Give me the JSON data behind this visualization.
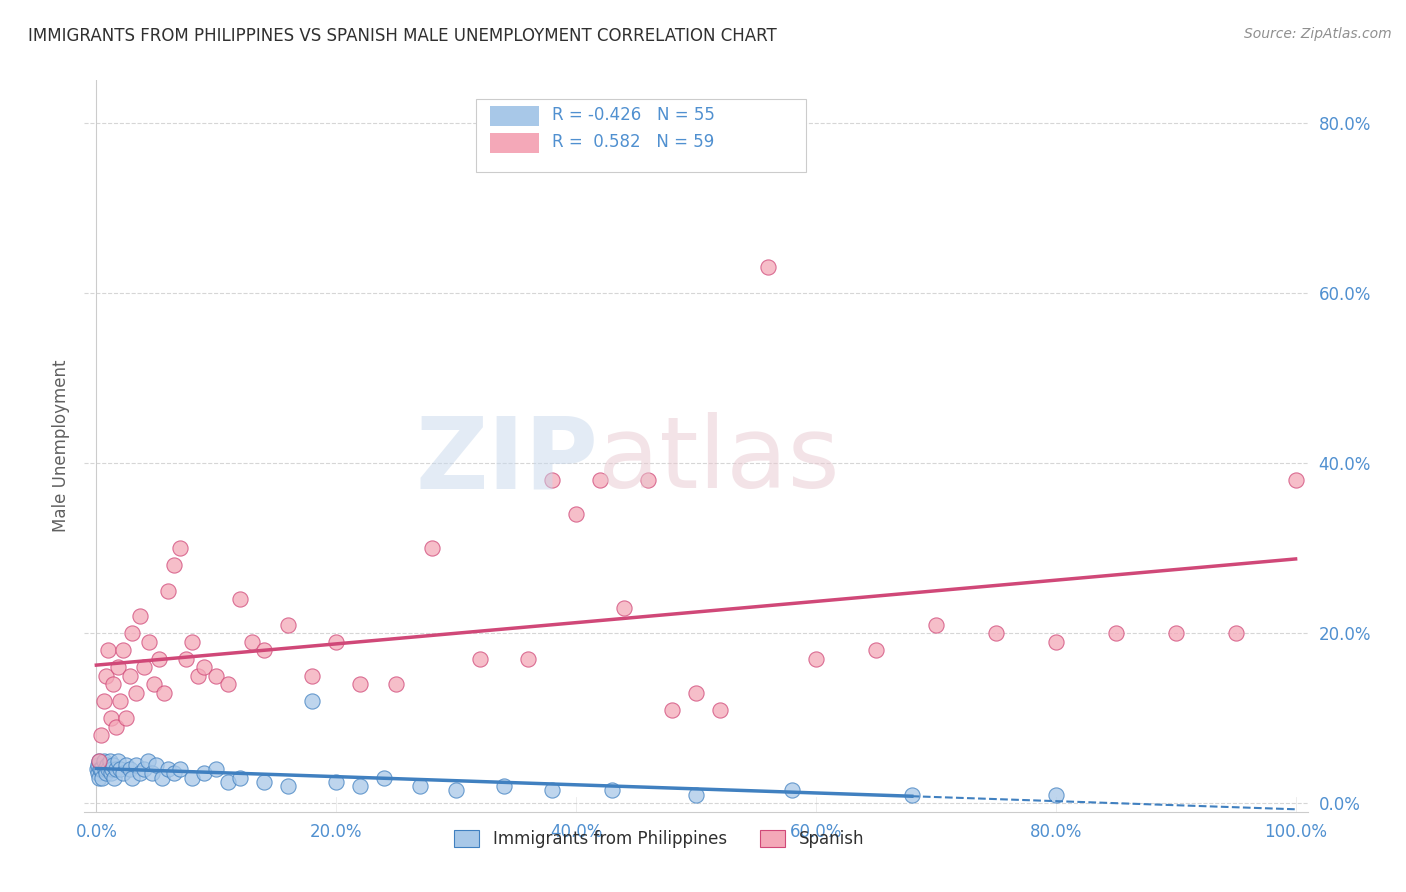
{
  "title": "IMMIGRANTS FROM PHILIPPINES VS SPANISH MALE UNEMPLOYMENT CORRELATION CHART",
  "source": "Source: ZipAtlas.com",
  "ylabel": "Male Unemployment",
  "legend_label1": "Immigrants from Philippines",
  "legend_label2": "Spanish",
  "R1": -0.426,
  "N1": 55,
  "R2": 0.582,
  "N2": 59,
  "color1": "#a8c8e8",
  "color2": "#f4a8b8",
  "line_color1": "#4080c0",
  "line_color2": "#d04878",
  "tick_color": "#5090d0",
  "grid_color": "#cccccc",
  "background_color": "#ffffff",
  "title_color": "#303030",
  "source_color": "#909090",
  "ylabel_color": "#606060",
  "xlim": [
    0.0,
    1.0
  ],
  "ylim": [
    0.0,
    0.85
  ],
  "xtick_vals": [
    0.0,
    0.2,
    0.4,
    0.6,
    0.8,
    1.0
  ],
  "ytick_vals": [
    0.0,
    0.2,
    0.4,
    0.6,
    0.8
  ],
  "philippines_x": [
    0.0005,
    0.001,
    0.0015,
    0.002,
    0.0025,
    0.003,
    0.004,
    0.005,
    0.006,
    0.007,
    0.008,
    0.009,
    0.01,
    0.011,
    0.012,
    0.013,
    0.014,
    0.015,
    0.016,
    0.018,
    0.02,
    0.022,
    0.025,
    0.028,
    0.03,
    0.033,
    0.036,
    0.04,
    0.043,
    0.046,
    0.05,
    0.055,
    0.06,
    0.065,
    0.07,
    0.08,
    0.09,
    0.1,
    0.11,
    0.12,
    0.14,
    0.16,
    0.18,
    0.2,
    0.22,
    0.24,
    0.27,
    0.3,
    0.34,
    0.38,
    0.43,
    0.5,
    0.58,
    0.68,
    0.8
  ],
  "philippines_y": [
    0.04,
    0.035,
    0.045,
    0.03,
    0.05,
    0.04,
    0.04,
    0.03,
    0.05,
    0.04,
    0.035,
    0.045,
    0.04,
    0.05,
    0.035,
    0.04,
    0.045,
    0.03,
    0.04,
    0.05,
    0.04,
    0.035,
    0.045,
    0.04,
    0.03,
    0.045,
    0.035,
    0.04,
    0.05,
    0.035,
    0.045,
    0.03,
    0.04,
    0.035,
    0.04,
    0.03,
    0.035,
    0.04,
    0.025,
    0.03,
    0.025,
    0.02,
    0.12,
    0.025,
    0.02,
    0.03,
    0.02,
    0.015,
    0.02,
    0.015,
    0.015,
    0.01,
    0.015,
    0.01,
    0.01
  ],
  "spanish_x": [
    0.002,
    0.004,
    0.006,
    0.008,
    0.01,
    0.012,
    0.014,
    0.016,
    0.018,
    0.02,
    0.022,
    0.025,
    0.028,
    0.03,
    0.033,
    0.036,
    0.04,
    0.044,
    0.048,
    0.052,
    0.056,
    0.06,
    0.065,
    0.07,
    0.075,
    0.08,
    0.085,
    0.09,
    0.1,
    0.11,
    0.12,
    0.13,
    0.14,
    0.16,
    0.18,
    0.2,
    0.22,
    0.25,
    0.28,
    0.32,
    0.36,
    0.4,
    0.44,
    0.48,
    0.52,
    0.56,
    0.6,
    0.65,
    0.7,
    0.75,
    0.8,
    0.85,
    0.9,
    0.95,
    1.0,
    0.38,
    0.42,
    0.46,
    0.5
  ],
  "spanish_y": [
    0.05,
    0.08,
    0.12,
    0.15,
    0.18,
    0.1,
    0.14,
    0.09,
    0.16,
    0.12,
    0.18,
    0.1,
    0.15,
    0.2,
    0.13,
    0.22,
    0.16,
    0.19,
    0.14,
    0.17,
    0.13,
    0.25,
    0.28,
    0.3,
    0.17,
    0.19,
    0.15,
    0.16,
    0.15,
    0.14,
    0.24,
    0.19,
    0.18,
    0.21,
    0.15,
    0.19,
    0.14,
    0.14,
    0.3,
    0.17,
    0.17,
    0.34,
    0.23,
    0.11,
    0.11,
    0.63,
    0.17,
    0.18,
    0.21,
    0.2,
    0.19,
    0.2,
    0.2,
    0.2,
    0.38,
    0.38,
    0.38,
    0.38,
    0.13
  ]
}
